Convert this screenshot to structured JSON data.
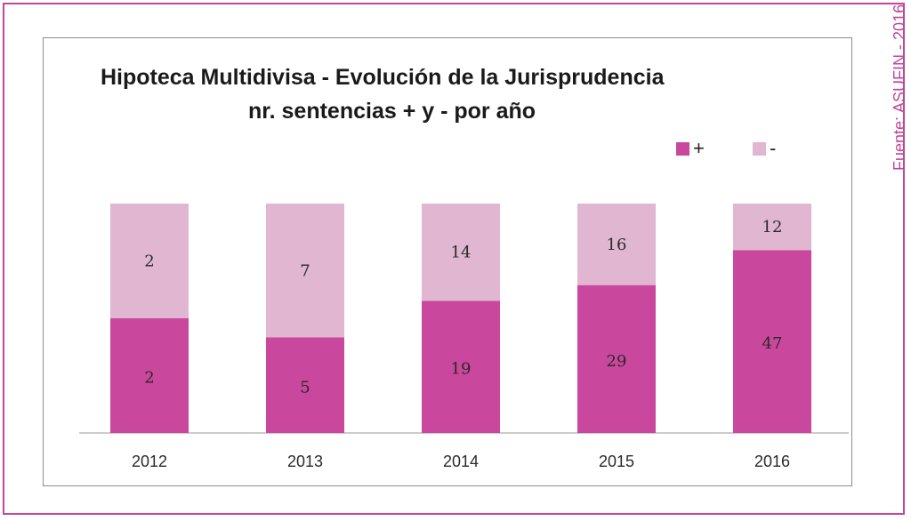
{
  "source_note": "Fuente: ASUFIN - 2016",
  "chart_data": {
    "type": "bar",
    "stacked": true,
    "title": "Hipoteca Multidivisa - Evolución de la Jurisprudencia",
    "subtitle": "nr. sentencias + y - por año",
    "categories": [
      "2012",
      "2013",
      "2014",
      "2015",
      "2016"
    ],
    "series": [
      {
        "name": "+",
        "values": [
          2,
          5,
          19,
          29,
          47
        ],
        "color": "#c9479c"
      },
      {
        "name": "-",
        "values": [
          2,
          7,
          14,
          16,
          12
        ],
        "color": "#e0b6d1"
      }
    ],
    "legend_position": "top-right",
    "grid": false,
    "note": "Bars are drawn with equal total height (100% stacked)"
  }
}
